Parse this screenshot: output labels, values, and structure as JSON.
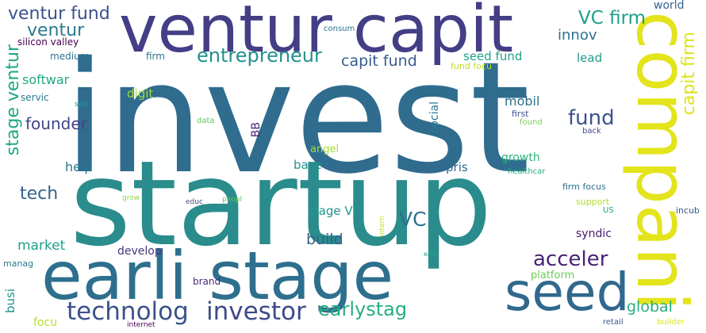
{
  "words": {
    "invest": {
      "text": "invest",
      "color": "#2f6c8e"
    },
    "startup": {
      "text": "startup",
      "color": "#2a8c8c"
    },
    "ventur_capit": {
      "text": "ventur capit",
      "color": "#433e85"
    },
    "earli_stage": {
      "text": "earli stage",
      "color": "#2e6f8e"
    },
    "compani": {
      "text": "compani",
      "color": "#e3e41b"
    },
    "seed": {
      "text": "seed",
      "color": "#31688e"
    },
    "technolog": {
      "text": "technolog",
      "color": "#3b528b"
    },
    "investor": {
      "text": "investor",
      "color": "#3e4a89"
    },
    "entrepreneur": {
      "text": "entrepreneur",
      "color": "#21908d"
    },
    "earlystag": {
      "text": "earlystag",
      "color": "#27ad81"
    },
    "acceler": {
      "text": "acceler",
      "color": "#482374"
    },
    "fund": {
      "text": "fund",
      "color": "#3b528b"
    },
    "ventur_fund": {
      "text": "ventur fund",
      "color": "#3b528b"
    },
    "vc_firm": {
      "text": "VC firm",
      "color": "#1fa088"
    },
    "capit_firm": {
      "text": "capit firm",
      "color": "#dde318"
    },
    "stage_ventur": {
      "text": "stage ventur",
      "color": "#22a785"
    },
    "ventur": {
      "text": "ventur",
      "color": "#2a788e"
    },
    "founder": {
      "text": "founder",
      "color": "#414487"
    },
    "tech": {
      "text": "tech",
      "color": "#33638d"
    },
    "capit_fund": {
      "text": "capit fund",
      "color": "#365c8d"
    },
    "vc": {
      "text": "VC",
      "color": "#2d718e"
    },
    "build": {
      "text": "build",
      "color": "#355f8d"
    },
    "global": {
      "text": "global",
      "color": "#28ae80"
    },
    "market": {
      "text": "market",
      "color": "#1fa088"
    },
    "innov": {
      "text": "innov",
      "color": "#2c728e"
    },
    "seed_fund": {
      "text": "seed fund",
      "color": "#20a386"
    },
    "lead": {
      "text": "lead",
      "color": "#1f9a8a"
    },
    "mobil": {
      "text": "mobil",
      "color": "#2e6f8e"
    },
    "softwar": {
      "text": "softwar",
      "color": "#22a884"
    },
    "enterpris": {
      "text": "enterpris",
      "color": "#31688e"
    },
    "stage_vc": {
      "text": "stage VC",
      "color": "#1f988b"
    },
    "base": {
      "text": "base",
      "color": "#20928c"
    },
    "help": {
      "text": "help",
      "color": "#2a788e"
    },
    "digit": {
      "text": "digit",
      "color": "#a0da39"
    },
    "growth": {
      "text": "growth",
      "color": "#2db27d"
    },
    "angel": {
      "text": "angel",
      "color": "#a5db36"
    },
    "develop": {
      "text": "develop",
      "color": "#46337e"
    },
    "syndic": {
      "text": "syndic",
      "color": "#48186a"
    },
    "world": {
      "text": "world",
      "color": "#33638d"
    },
    "social": {
      "text": "social",
      "color": "#297b8e"
    },
    "bb": {
      "text": "BB",
      "color": "#482475"
    },
    "busi": {
      "text": "busi",
      "color": "#20928c"
    },
    "focu": {
      "text": "focu",
      "color": "#b8de29"
    },
    "platform": {
      "text": "platform",
      "color": "#6ccd5a"
    },
    "brand": {
      "text": "brand",
      "color": "#482878"
    },
    "silicon_valley": {
      "text": "silicon valley",
      "color": "#440154"
    },
    "medium": {
      "text": "medium",
      "color": "#2c728e"
    },
    "firm": {
      "text": "firm",
      "color": "#2c728e"
    },
    "servic": {
      "text": "servic",
      "color": "#287d8e"
    },
    "consum": {
      "text": "consum",
      "color": "#2a788e"
    },
    "fund_focu": {
      "text": "fund focu",
      "color": "#bddf26"
    },
    "first": {
      "text": "first",
      "color": "#3b528b"
    },
    "found": {
      "text": "found",
      "color": "#7ad151"
    },
    "back": {
      "text": "back",
      "color": "#404688"
    },
    "seri": {
      "text": "seri",
      "color": "#1fa088"
    },
    "data": {
      "text": "data",
      "color": "#5ec962"
    },
    "healthcar": {
      "text": "healthcar",
      "color": "#26ad81"
    },
    "firm_focus": {
      "text": "firm focus",
      "color": "#2d708e"
    },
    "support": {
      "text": "support",
      "color": "#b5de2b"
    },
    "us": {
      "text": "US",
      "color": "#1fa088"
    },
    "incub": {
      "text": "incub",
      "color": "#38588c"
    },
    "grow": {
      "text": "grow",
      "color": "#8fd744"
    },
    "educ": {
      "text": "educ",
      "color": "#3e4989"
    },
    "peopl": {
      "text": "peopl",
      "color": "#5ec962"
    },
    "intern": {
      "text": "intern",
      "color": "#bddf26"
    },
    "earli": {
      "text": "earli",
      "color": "#20a386"
    },
    "manag": {
      "text": "manag",
      "color": "#2a788e"
    },
    "internet": {
      "text": "internet",
      "color": "#440154"
    },
    "retail": {
      "text": "retail",
      "color": "#39568c"
    },
    "builder": {
      "text": "builder",
      "color": "#dde318"
    }
  }
}
